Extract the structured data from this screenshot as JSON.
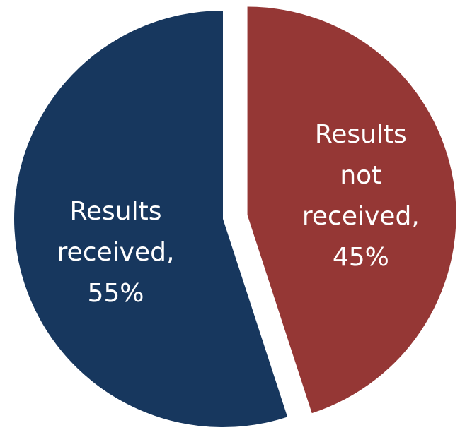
{
  "chart_data": {
    "type": "pie",
    "values": [
      45,
      55
    ],
    "value_labels": [
      "Results not received, 45%",
      "Results received, 55%"
    ],
    "colors": [
      "#953735",
      "#17375e"
    ],
    "explode": [
      true,
      false
    ]
  }
}
